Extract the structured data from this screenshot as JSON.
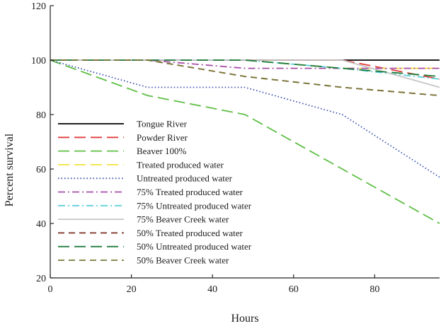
{
  "chart_data": {
    "type": "line",
    "xlabel": "Hours",
    "ylabel": "Percent survival",
    "xlim": [
      0,
      96
    ],
    "ylim": [
      20,
      120
    ],
    "xticks": [
      0,
      20,
      40,
      60,
      80
    ],
    "yticks": [
      20,
      40,
      60,
      80,
      100,
      120
    ],
    "legend_position": "left",
    "grid": false,
    "series": [
      {
        "name": "Tongue River",
        "color": "#000000",
        "dash": "solid",
        "x": [
          0,
          24,
          48,
          72,
          96
        ],
        "y": [
          100,
          100,
          100,
          100,
          100
        ]
      },
      {
        "name": "Powder River",
        "color": "#e23b3b",
        "dash": "long",
        "x": [
          0,
          24,
          48,
          72,
          96
        ],
        "y": [
          100,
          100,
          100,
          100,
          93
        ]
      },
      {
        "name": "Beaver 100%",
        "color": "#5fbf45",
        "dash": "long",
        "x": [
          0,
          24,
          48,
          72,
          96
        ],
        "y": [
          100,
          87,
          80,
          60,
          40
        ]
      },
      {
        "name": "Treated produced water",
        "color": "#f4e23a",
        "dash": "long",
        "x": [
          0,
          24,
          48,
          72,
          96
        ],
        "y": [
          100,
          100,
          100,
          97,
          97
        ]
      },
      {
        "name": "Untreated produced water",
        "color": "#3a4fb0",
        "dash": "dot",
        "x": [
          0,
          24,
          48,
          72,
          96
        ],
        "y": [
          100,
          90,
          90,
          80,
          57
        ]
      },
      {
        "name": "75% Treated produced water",
        "color": "#a64fa6",
        "dash": "dashdot",
        "x": [
          0,
          24,
          48,
          72,
          96
        ],
        "y": [
          100,
          100,
          97,
          97,
          97
        ]
      },
      {
        "name": "75% Untreated produced water",
        "color": "#5fcfd8",
        "dash": "dashdot",
        "x": [
          0,
          24,
          48,
          72,
          96
        ],
        "y": [
          100,
          100,
          100,
          97,
          93
        ]
      },
      {
        "name": "75% Beaver Creek water",
        "color": "#c6c6c6",
        "dash": "solid",
        "x": [
          0,
          24,
          48,
          72,
          96
        ],
        "y": [
          100,
          100,
          100,
          100,
          90
        ]
      },
      {
        "name": "50% Treated produced water",
        "color": "#7a2a20",
        "dash": "short",
        "x": [
          0,
          24,
          48,
          72,
          96
        ],
        "y": [
          100,
          100,
          94,
          90,
          87
        ]
      },
      {
        "name": "50% Untreated produced water",
        "color": "#1f7a3a",
        "dash": "long",
        "x": [
          0,
          24,
          48,
          72,
          96
        ],
        "y": [
          100,
          100,
          100,
          97,
          94
        ]
      },
      {
        "name": "50% Beaver Creek water",
        "color": "#7a7a3a",
        "dash": "short",
        "x": [
          0,
          24,
          48,
          72,
          96
        ],
        "y": [
          100,
          100,
          94,
          90,
          87
        ]
      }
    ]
  }
}
